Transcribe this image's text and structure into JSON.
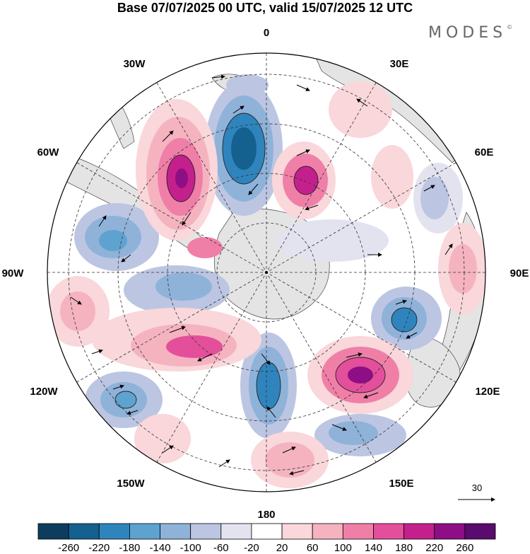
{
  "title": "Base 07/07/2025 00 UTC, valid 15/07/2025 12 UTC",
  "brand": {
    "name": "MODES",
    "mark": "©"
  },
  "longitude_labels": {
    "top": "0",
    "t30e": "30E",
    "t60e": "60E",
    "t90e": "90E",
    "t120e": "120E",
    "t150e": "150E",
    "bottom": "180",
    "t150w": "150W",
    "t120w": "120W",
    "t90w": "90W",
    "t60w": "60W",
    "t30w": "30W"
  },
  "vector_scale_label": "30",
  "colorbar": {
    "ticks": [
      "-260",
      "-220",
      "-180",
      "-140",
      "-100",
      "-60",
      "-20",
      "20",
      "60",
      "100",
      "140",
      "180",
      "220",
      "260"
    ],
    "colors": [
      "#0d3d5e",
      "#14608f",
      "#2f84bd",
      "#5ea3cf",
      "#8fb2d9",
      "#bcc6e2",
      "#e3e3f0",
      "#ffffff",
      "#f9d7da",
      "#f5b3c0",
      "#f07fa8",
      "#e34f9a",
      "#c4208d",
      "#8e0e86",
      "#5a0b6e"
    ]
  },
  "map_style": {
    "land_color": "#e4e4e4",
    "ocean_color": "#ffffff",
    "graticule_color": "#333333"
  }
}
